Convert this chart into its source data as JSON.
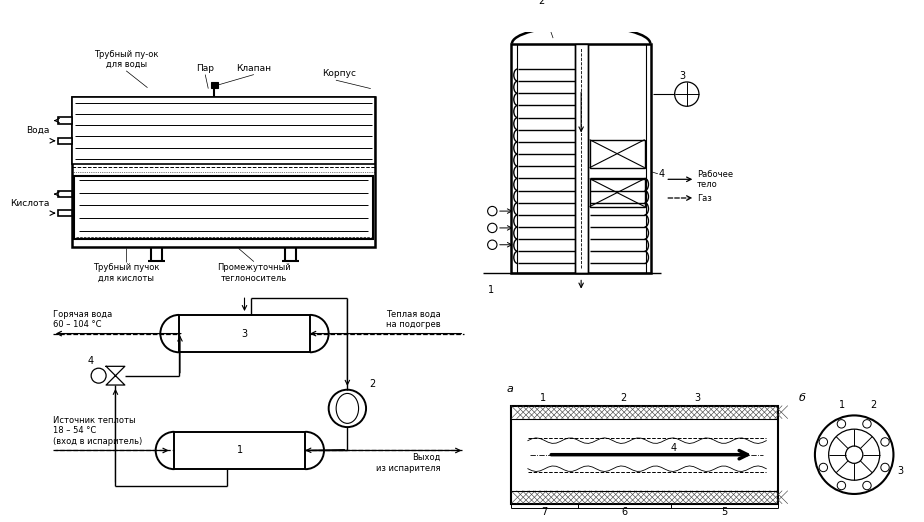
{
  "bg_color": "#ffffff",
  "line_color": "#000000",
  "fig_w": 9.24,
  "fig_h": 5.22,
  "dpi": 100,
  "tl": {
    "tube_bundle_water": "Трубный пу-ок\nдля воды",
    "steam": "Пар",
    "valve": "Клапан",
    "body": "Корпус",
    "water": "Вода",
    "acid": "Кислота",
    "tube_bundle_acid": "Трубный пучок\nдля кислоты",
    "intermediate": "Промежуточный\nтеглоноситель"
  },
  "tr": {
    "label2": "2",
    "label3": "3",
    "label4": "4",
    "label1": "1",
    "working_body": "Рабочее\nтело",
    "gas": "Газ"
  },
  "bl": {
    "hot_water": "Горячая вода\n60 – 104 °C",
    "warm_water": "Теплая вода\nна подогрев",
    "heat_source": "Источник теплоты\n18 – 54 °C\n(вход в испаритель)",
    "exit": "Выход\nиз испарителя",
    "label1": "1",
    "label2": "2",
    "label3": "3",
    "label4": "4"
  },
  "br": {
    "a": "а",
    "b": "б",
    "label1": "1",
    "label2": "2",
    "label3": "3",
    "label4": "4",
    "label5": "5",
    "label6": "6",
    "label7": "7"
  }
}
